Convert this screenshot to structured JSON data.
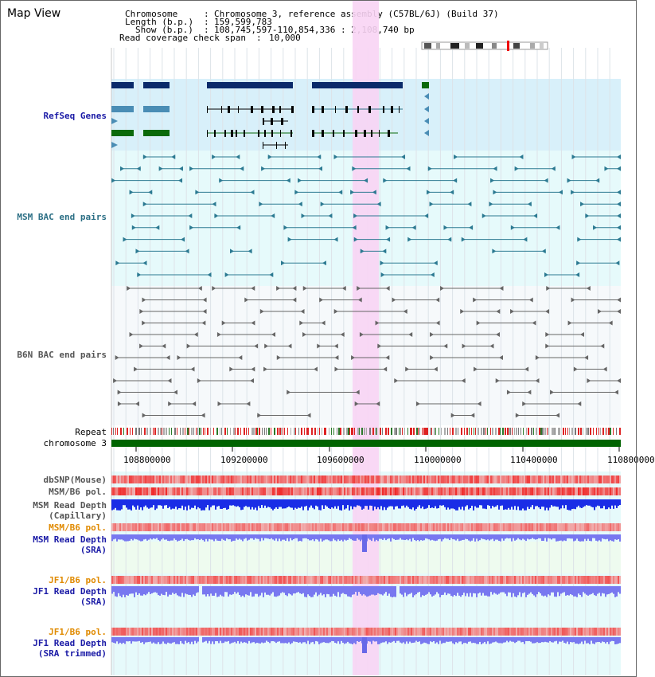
{
  "title": "Map View",
  "header": {
    "chromosome_key": "Chromosome",
    "chromosome_value": "Chromosome 3, reference assembly (C57BL/6J) (Build 37)",
    "length_key": "Length (b.p.)",
    "length_value": "159,599,783",
    "show_key": "Show (b.p.)",
    "show_value": "108,745,597-110,854,336 : 2,108,740 bp",
    "coverage_key": "Read coverage check span",
    "coverage_value": "10,000"
  },
  "tracks": {
    "refseq": {
      "label": "RefSeq Genes",
      "color": "#1a1aa6"
    },
    "msm_bac": {
      "label": "MSM BAC end pairs",
      "color": "#2c6f85"
    },
    "b6n_bac": {
      "label": "B6N BAC end pairs",
      "color": "#555555"
    },
    "repeat": {
      "label": "Repeat"
    },
    "chromosome": {
      "label": "chromosome 3"
    },
    "dbsnp": {
      "label": "dbSNP(Mouse)"
    },
    "msm_b6_pol_1": {
      "label": "MSM/B6 pol."
    },
    "msm_read_depth_cap": {
      "line1": "MSM Read Depth",
      "line2": "(Capillary)"
    },
    "msm_b6_pol_2": {
      "label": "MSM/B6 pol.",
      "color": "#e08a00"
    },
    "msm_read_depth_sra": {
      "line1": "MSM Read Depth",
      "line2": "(SRA)",
      "color": "#1a1aa6"
    },
    "jf1_b6_pol_1": {
      "label": "JF1/B6 pol.",
      "color": "#e08a00"
    },
    "jf1_read_depth_sra": {
      "line1": "JF1 Read Depth",
      "line2": "(SRA)",
      "color": "#1a1aa6"
    },
    "jf1_b6_pol_2": {
      "label": "JF1/B6 pol.",
      "color": "#e08a00"
    },
    "jf1_read_depth_trimmed": {
      "line1": "JF1 Read Depth",
      "line2": "(SRA trimmed)",
      "color": "#1a1aa6"
    }
  },
  "axis": {
    "ticks": [
      "108800000",
      "109200000",
      "109600000",
      "110000000",
      "110400000",
      "110800000"
    ]
  },
  "colors": {
    "highlight": "#f8d4f4",
    "refseq_bg": "#d8f0fa",
    "track_bg": "#e6fafb",
    "gene_dark": "#0a2a6a",
    "gene_light": "#4a8db5",
    "gene_green": "#0a6a0a",
    "chromosome_bar": "#006400",
    "depth_blue": "#1a2de6",
    "depth_light": "#7878f0"
  }
}
